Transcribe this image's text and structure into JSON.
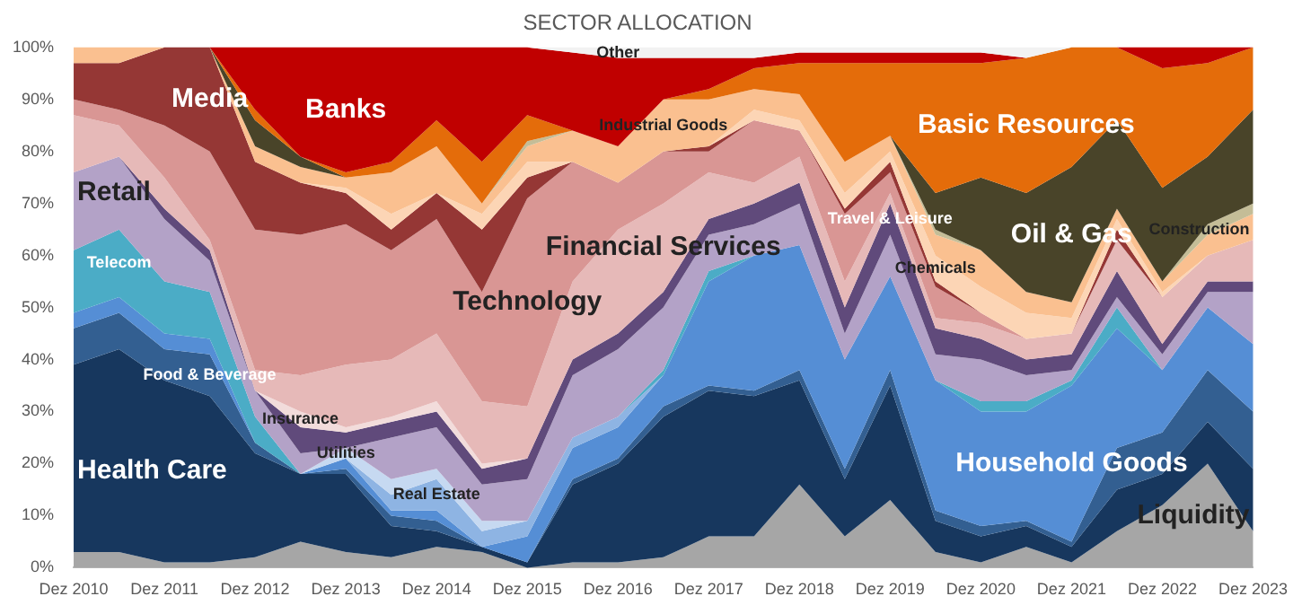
{
  "chart_data": {
    "type": "area",
    "stacked": true,
    "title": "SECTOR ALLOCATION",
    "categories": [
      "Dez 2010",
      null,
      "Dez 2011",
      null,
      "Dez 2012",
      null,
      "Dez 2013",
      null,
      "Dez 2014",
      null,
      "Dez 2015",
      null,
      "Dez 2016",
      null,
      "Dez 2017",
      null,
      "Dez 2018",
      null,
      "Dez 2019",
      null,
      "Dez 2020",
      null,
      "Dez 2021",
      null,
      "Dez 2022",
      null,
      "Dez 2023"
    ],
    "ylim": [
      0,
      100
    ],
    "yticks": [
      {
        "value": 0,
        "label": "0%"
      },
      {
        "value": 10,
        "label": "10%"
      },
      {
        "value": 20,
        "label": "20%"
      },
      {
        "value": 30,
        "label": "30%"
      },
      {
        "value": 40,
        "label": "40%"
      },
      {
        "value": 50,
        "label": "50%"
      },
      {
        "value": 60,
        "label": "60%"
      },
      {
        "value": 70,
        "label": "70%"
      },
      {
        "value": 80,
        "label": "80%"
      },
      {
        "value": 90,
        "label": "90%"
      },
      {
        "value": 100,
        "label": "100%"
      }
    ],
    "legend": false,
    "series": [
      {
        "name": "Liquidity",
        "color": "#a6a6a6",
        "values": [
          3,
          3,
          1,
          1,
          2,
          5,
          3,
          2,
          4,
          3,
          0,
          1,
          1,
          2,
          6,
          6,
          16,
          6,
          13,
          3,
          1,
          4,
          1,
          7,
          12,
          20,
          7
        ]
      },
      {
        "name": "Health Care",
        "color": "#17375e",
        "values": [
          36,
          39,
          35,
          32,
          20,
          13,
          15,
          6,
          3,
          1,
          1,
          15,
          19,
          27,
          28,
          27,
          20,
          11,
          22,
          6,
          5,
          4,
          3,
          8,
          6,
          8,
          12
        ]
      },
      {
        "name": "Food & Beverage",
        "color": "#335f91",
        "values": [
          7,
          7,
          6,
          8,
          2,
          0,
          1,
          2,
          2,
          0,
          0,
          1,
          1,
          2,
          1,
          1,
          2,
          2,
          3,
          2,
          2,
          1,
          1,
          8,
          8,
          10,
          11
        ]
      },
      {
        "name": "Household Goods",
        "color": "#558ed5",
        "values": [
          3,
          3,
          3,
          3,
          0,
          0,
          2,
          1,
          2,
          0,
          5,
          6,
          6,
          6,
          20,
          26,
          24,
          21,
          18,
          25,
          22,
          21,
          30,
          23,
          12,
          12,
          13
        ]
      },
      {
        "name": "Real Estate",
        "color": "#8eb4e3",
        "values": [
          null,
          null,
          null,
          null,
          null,
          null,
          0,
          3,
          6,
          3,
          3,
          2,
          2,
          0,
          null,
          null,
          null,
          null,
          null,
          null,
          null,
          null,
          null,
          null,
          null,
          null,
          null
        ]
      },
      {
        "name": "Utilities",
        "color": "#c6d9f1",
        "values": [
          null,
          null,
          null,
          null,
          null,
          0,
          2,
          3,
          2,
          2,
          0,
          null,
          null,
          null,
          null,
          null,
          null,
          null,
          null,
          null,
          null,
          null,
          null,
          null,
          null,
          null,
          null
        ]
      },
      {
        "name": "Telecom",
        "color": "#4bacc6",
        "values": [
          12,
          13,
          10,
          9,
          5,
          0,
          null,
          null,
          null,
          null,
          null,
          null,
          0,
          1,
          2,
          0,
          null,
          null,
          null,
          0,
          2,
          2,
          1,
          4,
          0,
          null,
          null
        ]
      },
      {
        "name": "Retail",
        "color": "#b3a2c7",
        "values": [
          15,
          14,
          12,
          6,
          5,
          4,
          0,
          8,
          8,
          7,
          8,
          12,
          13,
          12,
          7,
          6,
          8,
          5,
          8,
          5,
          8,
          5,
          2,
          2,
          3,
          3,
          10
        ]
      },
      {
        "name": "Travel & Leisure",
        "color": "#604a7b",
        "values": [
          null,
          0,
          2,
          2,
          0,
          5,
          3,
          3,
          3,
          3,
          4,
          3,
          3,
          3,
          3,
          4,
          4,
          5,
          6,
          5,
          4,
          3,
          3,
          5,
          2,
          2,
          2
        ]
      },
      {
        "name": "Insurance",
        "color": "#f2dcdb",
        "values": [
          null,
          null,
          null,
          null,
          0,
          3,
          1,
          1,
          2,
          1,
          0,
          null,
          null,
          null,
          null,
          null,
          null,
          null,
          null,
          null,
          null,
          null,
          null,
          null,
          null,
          null,
          null
        ]
      },
      {
        "name": "Financial Services",
        "color": "#e6b9b8",
        "values": [
          11,
          6,
          6,
          2,
          4,
          7,
          12,
          11,
          13,
          12,
          10,
          15,
          20,
          17,
          9,
          4,
          5,
          5,
          2,
          2,
          3,
          4,
          4,
          6,
          9,
          5,
          8
        ]
      },
      {
        "name": "Technology",
        "color": "#d99694",
        "values": [
          3,
          3,
          10,
          17,
          27,
          27,
          27,
          21,
          22,
          21,
          40,
          23,
          9,
          10,
          4,
          12,
          5,
          13,
          4,
          6,
          2,
          0,
          null,
          null,
          null,
          null,
          null
        ]
      },
      {
        "name": "Media",
        "color": "#953735",
        "values": [
          7,
          9,
          15,
          20,
          13,
          10,
          6,
          4,
          5,
          12,
          4,
          0,
          null,
          0,
          1,
          0,
          0,
          1,
          2,
          1,
          0,
          null,
          0,
          2,
          0,
          null,
          null
        ]
      },
      {
        "name": "Chemicals",
        "color": "#fcd5b5",
        "values": [
          null,
          null,
          null,
          null,
          null,
          0,
          1,
          3,
          0,
          3,
          3,
          0,
          null,
          null,
          0,
          2,
          2,
          3,
          2,
          5,
          5,
          5,
          3,
          2,
          1,
          0,
          null
        ]
      },
      {
        "name": "Industrial Goods",
        "color": "#fac090",
        "values": [
          3,
          3,
          0,
          0,
          3,
          3,
          2,
          8,
          9,
          2,
          3,
          6,
          7,
          10,
          9,
          4,
          5,
          6,
          3,
          4,
          7,
          4,
          3,
          2,
          2,
          4,
          5
        ]
      },
      {
        "name": "Construction",
        "color": "#c4bd97",
        "values": [
          null,
          null,
          null,
          null,
          null,
          null,
          null,
          null,
          null,
          0,
          1,
          0,
          null,
          null,
          null,
          null,
          null,
          null,
          0,
          1,
          0,
          null,
          null,
          null,
          0,
          2,
          2
        ]
      },
      {
        "name": "Oil & Gas",
        "color": "#494429",
        "values": [
          null,
          null,
          null,
          0,
          5,
          2,
          0,
          null,
          null,
          null,
          null,
          null,
          null,
          null,
          null,
          null,
          null,
          null,
          0,
          7,
          14,
          19,
          26,
          17,
          18,
          13,
          18
        ]
      },
      {
        "name": "Basic Resources",
        "color": "#e46c0a",
        "values": [
          null,
          null,
          null,
          0,
          2,
          0,
          1,
          2,
          5,
          8,
          5,
          0,
          null,
          0,
          2,
          4,
          6,
          19,
          14,
          25,
          22,
          26,
          23,
          14,
          23,
          18,
          12
        ]
      },
      {
        "name": "Banks",
        "color": "#c00000",
        "values": [
          null,
          null,
          null,
          0,
          12,
          21,
          24,
          22,
          14,
          22,
          13,
          15,
          17,
          8,
          6,
          2,
          2,
          2,
          2,
          2,
          2,
          0,
          null,
          0,
          4,
          3,
          0
        ]
      },
      {
        "name": "Other",
        "color": "#f2f2f2",
        "values": [
          null,
          null,
          null,
          null,
          null,
          null,
          null,
          null,
          null,
          null,
          0,
          1,
          2,
          2,
          2,
          2,
          1,
          1,
          1,
          1,
          1,
          2,
          0,
          null,
          null,
          null,
          null
        ]
      }
    ]
  }
}
